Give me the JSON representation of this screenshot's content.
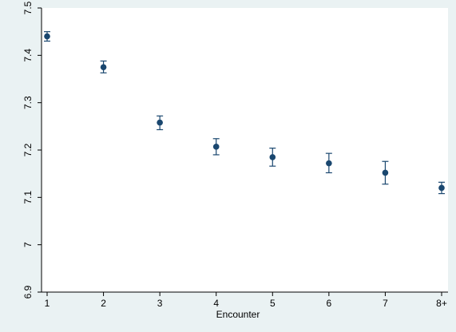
{
  "chart_data": {
    "type": "scatter",
    "title": "",
    "xlabel": "Encounter",
    "ylabel": "",
    "x_ticks": [
      "1",
      "2",
      "3",
      "4",
      "5",
      "6",
      "7",
      "8+"
    ],
    "y_ticks": [
      "6.9",
      "7",
      "7.1",
      "7.2",
      "7.3",
      "7.4",
      "7.5"
    ],
    "ylim": [
      6.9,
      7.5
    ],
    "grid": false,
    "legend": "none",
    "error_bars": true,
    "points": [
      {
        "x": "1",
        "y": 7.44,
        "lower": 7.43,
        "upper": 7.45
      },
      {
        "x": "2",
        "y": 7.375,
        "lower": 7.363,
        "upper": 7.388
      },
      {
        "x": "3",
        "y": 7.258,
        "lower": 7.243,
        "upper": 7.272
      },
      {
        "x": "4",
        "y": 7.207,
        "lower": 7.19,
        "upper": 7.224
      },
      {
        "x": "5",
        "y": 7.185,
        "lower": 7.166,
        "upper": 7.204
      },
      {
        "x": "6",
        "y": 7.172,
        "lower": 7.152,
        "upper": 7.193
      },
      {
        "x": "7",
        "y": 7.152,
        "lower": 7.128,
        "upper": 7.176
      },
      {
        "x": "8+",
        "y": 7.12,
        "lower": 7.108,
        "upper": 7.132
      }
    ],
    "colors": {
      "background": "#eaf2f3",
      "plot_area": "#ffffff",
      "marker": "#1a476f",
      "axis": "#000000"
    }
  }
}
